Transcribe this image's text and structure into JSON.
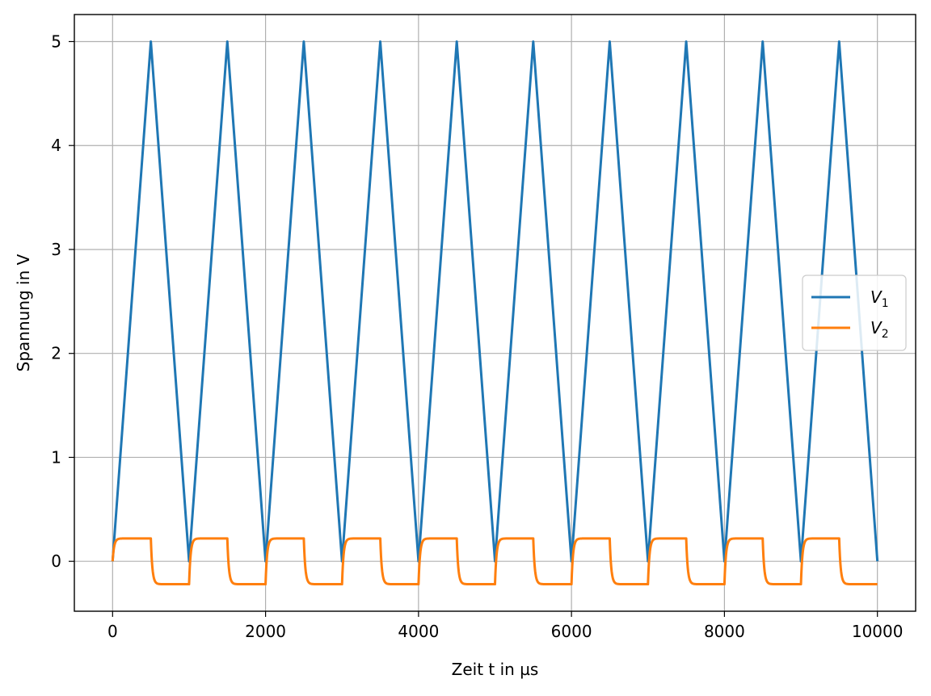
{
  "chart_data": {
    "type": "line",
    "xlabel": "Zeit t in µs",
    "ylabel": "Spannung in V",
    "xlim": [
      -500,
      10500
    ],
    "ylim": [
      -0.48,
      5.26
    ],
    "xticks": [
      0,
      2000,
      4000,
      6000,
      8000,
      10000
    ],
    "yticks": [
      0,
      1,
      2,
      3,
      4,
      5
    ],
    "grid": true,
    "legend_position": "center-right",
    "series": [
      {
        "name": "V1",
        "color": "#1f77b4",
        "x": [
          0,
          500,
          1000,
          1500,
          2000,
          2500,
          3000,
          3500,
          4000,
          4500,
          5000,
          5500,
          6000,
          6500,
          7000,
          7500,
          8000,
          8500,
          9000,
          9500,
          10000
        ],
        "y": [
          0,
          5,
          0,
          5,
          0,
          5,
          0,
          5,
          0,
          5,
          0,
          5,
          0,
          5,
          0,
          5,
          0,
          5,
          0,
          5,
          0
        ]
      },
      {
        "name": "V2",
        "color": "#ff7f0e",
        "description_shape": "square-like wave",
        "period": 1000,
        "amplitude": 0.22,
        "time_constant": 20,
        "x_range": [
          0,
          10000
        ]
      }
    ]
  }
}
